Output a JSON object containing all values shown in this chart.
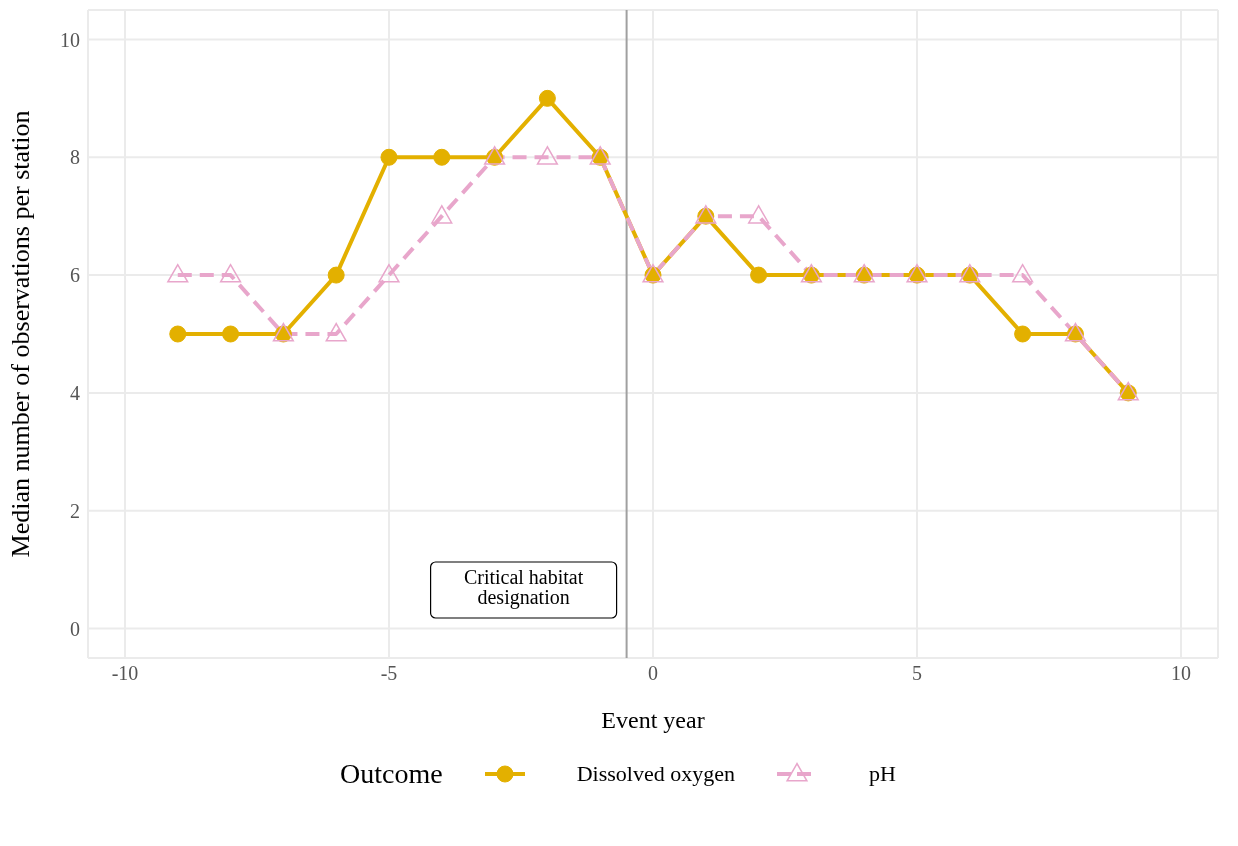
{
  "chart_data": {
    "type": "line",
    "xlabel": "Event year",
    "ylabel": "Median number of observations per station",
    "legend_title": "Outcome",
    "legend": "bottom",
    "grid": true,
    "x": [
      -9,
      -8,
      -7,
      -6,
      -5,
      -4,
      -3,
      -2,
      -1,
      0,
      1,
      2,
      3,
      4,
      5,
      6,
      7,
      8,
      9
    ],
    "xlim": [
      -10.7,
      10.7
    ],
    "xticks": [
      -10,
      -5,
      0,
      5,
      10
    ],
    "ylim": [
      -0.5,
      10.5
    ],
    "yticks": [
      0,
      2,
      4,
      6,
      8,
      10
    ],
    "series": [
      {
        "name": "Dissolved oxygen",
        "color": "#e3b000",
        "marker": "circle",
        "line_style": "solid",
        "values": [
          5,
          5,
          5,
          6,
          8,
          8,
          8,
          9,
          8,
          6,
          7,
          6,
          6,
          6,
          6,
          6,
          5,
          5,
          4
        ]
      },
      {
        "name": "pH",
        "color": "#e8a6cb",
        "marker": "triangle",
        "line_style": "dashed",
        "values": [
          6,
          6,
          5,
          5,
          6,
          7,
          8,
          8,
          8,
          6,
          7,
          7,
          6,
          6,
          6,
          6,
          6,
          5,
          4
        ]
      }
    ],
    "ref_lines": [
      {
        "axis": "x",
        "value": -0.5,
        "label": "Critical habitat designation",
        "color": "#a0a0a0"
      }
    ]
  }
}
